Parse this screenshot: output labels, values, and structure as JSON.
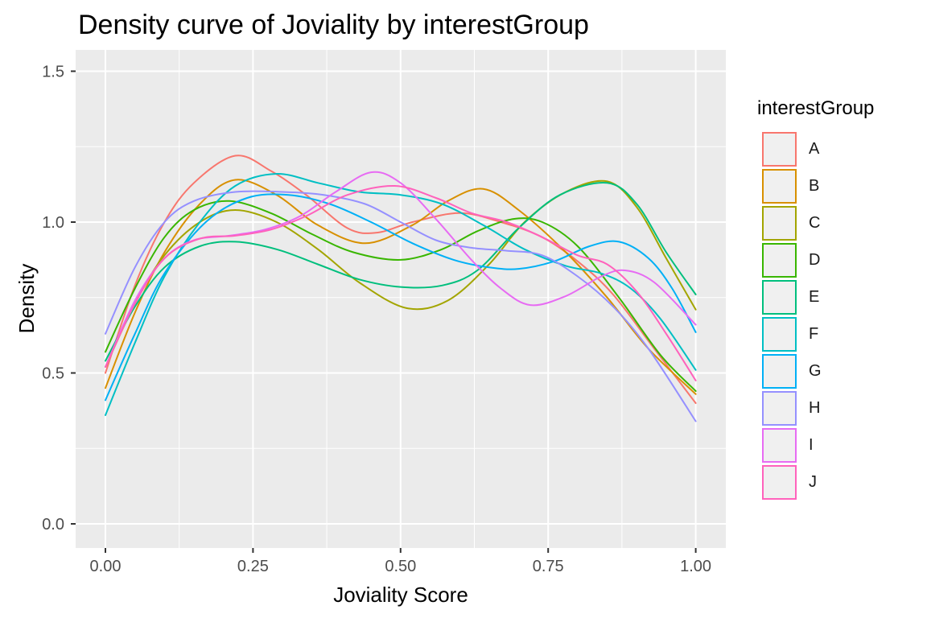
{
  "title": "Density curve of Joviality by interestGroup",
  "style": {
    "panel_bg": "#EBEBEB",
    "grid_color": "#FFFFFF",
    "tick_color": "#333333",
    "tick_label_color": "#4D4D4D",
    "title_color": "#000000",
    "axis_title_color": "#000000",
    "legend_key_bg": "#F0F0F0"
  },
  "legend": {
    "title": "interestGroup",
    "items": [
      {
        "label": "A",
        "color": "#F8766D"
      },
      {
        "label": "B",
        "color": "#D89000"
      },
      {
        "label": "C",
        "color": "#A3A500"
      },
      {
        "label": "D",
        "color": "#39B600"
      },
      {
        "label": "E",
        "color": "#00BF7D"
      },
      {
        "label": "F",
        "color": "#00BFC4"
      },
      {
        "label": "G",
        "color": "#00B0F6"
      },
      {
        "label": "H",
        "color": "#9590FF"
      },
      {
        "label": "I",
        "color": "#E76BF3"
      },
      {
        "label": "J",
        "color": "#FF62BC"
      }
    ]
  },
  "chart_data": {
    "type": "line",
    "subtype": "density",
    "title": "Density curve of Joviality by interestGroup",
    "xlabel": "Joviality Score",
    "ylabel": "Density",
    "xlim": [
      -0.05,
      1.05
    ],
    "ylim": [
      0,
      1.57
    ],
    "grid": true,
    "legend_position": "right",
    "x_ticks": [
      {
        "value": 0.0,
        "label": "0.00"
      },
      {
        "value": 0.25,
        "label": "0.25"
      },
      {
        "value": 0.5,
        "label": "0.50"
      },
      {
        "value": 0.75,
        "label": "0.75"
      },
      {
        "value": 1.0,
        "label": "1.00"
      }
    ],
    "y_ticks": [
      {
        "value": 0.0,
        "label": "0.0"
      },
      {
        "value": 0.5,
        "label": "0.5"
      },
      {
        "value": 1.0,
        "label": "1.0"
      },
      {
        "value": 1.5,
        "label": "1.5"
      }
    ],
    "x_minor": [
      0.125,
      0.375,
      0.625,
      0.875
    ],
    "y_minor": [
      0.25,
      0.75,
      1.25
    ],
    "series": [
      {
        "name": "A",
        "color": "#F8766D",
        "points": [
          [
            0,
            0.5
          ],
          [
            0.05,
            0.79
          ],
          [
            0.1,
            1.0
          ],
          [
            0.15,
            1.13
          ],
          [
            0.22,
            1.22
          ],
          [
            0.28,
            1.17
          ],
          [
            0.34,
            1.09
          ],
          [
            0.41,
            0.98
          ],
          [
            0.46,
            0.965
          ],
          [
            0.52,
            1.0
          ],
          [
            0.6,
            1.03
          ],
          [
            0.67,
            1.0
          ],
          [
            0.74,
            0.95
          ],
          [
            0.8,
            0.87
          ],
          [
            0.86,
            0.76
          ],
          [
            0.93,
            0.58
          ],
          [
            1.0,
            0.4
          ]
        ]
      },
      {
        "name": "B",
        "color": "#D89000",
        "points": [
          [
            0,
            0.45
          ],
          [
            0.05,
            0.7
          ],
          [
            0.1,
            0.9
          ],
          [
            0.16,
            1.06
          ],
          [
            0.22,
            1.14
          ],
          [
            0.29,
            1.09
          ],
          [
            0.36,
            0.99
          ],
          [
            0.44,
            0.93
          ],
          [
            0.52,
            0.99
          ],
          [
            0.58,
            1.07
          ],
          [
            0.64,
            1.11
          ],
          [
            0.7,
            1.04
          ],
          [
            0.78,
            0.9
          ],
          [
            0.85,
            0.75
          ],
          [
            0.92,
            0.58
          ],
          [
            1.0,
            0.43
          ]
        ]
      },
      {
        "name": "C",
        "color": "#A3A500",
        "points": [
          [
            0,
            0.52
          ],
          [
            0.05,
            0.73
          ],
          [
            0.1,
            0.89
          ],
          [
            0.16,
            1.0
          ],
          [
            0.22,
            1.04
          ],
          [
            0.29,
            1.0
          ],
          [
            0.36,
            0.91
          ],
          [
            0.43,
            0.8
          ],
          [
            0.51,
            0.715
          ],
          [
            0.58,
            0.74
          ],
          [
            0.65,
            0.86
          ],
          [
            0.71,
            1.0
          ],
          [
            0.78,
            1.1
          ],
          [
            0.85,
            1.135
          ],
          [
            0.9,
            1.05
          ],
          [
            0.95,
            0.88
          ],
          [
            1.0,
            0.71
          ]
        ]
      },
      {
        "name": "D",
        "color": "#39B600",
        "points": [
          [
            0,
            0.57
          ],
          [
            0.05,
            0.78
          ],
          [
            0.1,
            0.95
          ],
          [
            0.15,
            1.04
          ],
          [
            0.21,
            1.07
          ],
          [
            0.28,
            1.03
          ],
          [
            0.35,
            0.96
          ],
          [
            0.42,
            0.9
          ],
          [
            0.5,
            0.875
          ],
          [
            0.57,
            0.91
          ],
          [
            0.63,
            0.97
          ],
          [
            0.69,
            1.01
          ],
          [
            0.74,
            1.0
          ],
          [
            0.8,
            0.92
          ],
          [
            0.87,
            0.75
          ],
          [
            0.94,
            0.56
          ],
          [
            1.0,
            0.44
          ]
        ]
      },
      {
        "name": "E",
        "color": "#00BF7D",
        "points": [
          [
            0,
            0.54
          ],
          [
            0.05,
            0.72
          ],
          [
            0.1,
            0.85
          ],
          [
            0.16,
            0.92
          ],
          [
            0.22,
            0.935
          ],
          [
            0.29,
            0.91
          ],
          [
            0.36,
            0.86
          ],
          [
            0.43,
            0.81
          ],
          [
            0.5,
            0.785
          ],
          [
            0.57,
            0.79
          ],
          [
            0.63,
            0.84
          ],
          [
            0.7,
            0.98
          ],
          [
            0.77,
            1.09
          ],
          [
            0.85,
            1.13
          ],
          [
            0.9,
            1.06
          ],
          [
            0.95,
            0.9
          ],
          [
            1.0,
            0.76
          ]
        ]
      },
      {
        "name": "F",
        "color": "#00BFC4",
        "points": [
          [
            0,
            0.36
          ],
          [
            0.05,
            0.6
          ],
          [
            0.1,
            0.82
          ],
          [
            0.16,
            1.0
          ],
          [
            0.22,
            1.12
          ],
          [
            0.29,
            1.16
          ],
          [
            0.36,
            1.13
          ],
          [
            0.43,
            1.1
          ],
          [
            0.5,
            1.09
          ],
          [
            0.57,
            1.06
          ],
          [
            0.64,
            0.99
          ],
          [
            0.71,
            0.91
          ],
          [
            0.78,
            0.855
          ],
          [
            0.84,
            0.83
          ],
          [
            0.89,
            0.78
          ],
          [
            0.94,
            0.68
          ],
          [
            1.0,
            0.51
          ]
        ]
      },
      {
        "name": "G",
        "color": "#00B0F6",
        "points": [
          [
            0,
            0.41
          ],
          [
            0.05,
            0.63
          ],
          [
            0.1,
            0.83
          ],
          [
            0.17,
            1.0
          ],
          [
            0.24,
            1.08
          ],
          [
            0.31,
            1.09
          ],
          [
            0.38,
            1.06
          ],
          [
            0.45,
            1.0
          ],
          [
            0.52,
            0.93
          ],
          [
            0.59,
            0.875
          ],
          [
            0.65,
            0.85
          ],
          [
            0.7,
            0.845
          ],
          [
            0.76,
            0.87
          ],
          [
            0.82,
            0.92
          ],
          [
            0.87,
            0.935
          ],
          [
            0.92,
            0.88
          ],
          [
            0.96,
            0.78
          ],
          [
            1.0,
            0.635
          ]
        ]
      },
      {
        "name": "H",
        "color": "#9590FF",
        "points": [
          [
            0,
            0.63
          ],
          [
            0.05,
            0.85
          ],
          [
            0.1,
            1.0
          ],
          [
            0.15,
            1.07
          ],
          [
            0.22,
            1.1
          ],
          [
            0.3,
            1.1
          ],
          [
            0.37,
            1.09
          ],
          [
            0.44,
            1.06
          ],
          [
            0.5,
            1.0
          ],
          [
            0.56,
            0.94
          ],
          [
            0.62,
            0.915
          ],
          [
            0.68,
            0.905
          ],
          [
            0.74,
            0.89
          ],
          [
            0.8,
            0.82
          ],
          [
            0.86,
            0.72
          ],
          [
            0.92,
            0.58
          ],
          [
            1.0,
            0.34
          ]
        ]
      },
      {
        "name": "I",
        "color": "#E76BF3",
        "points": [
          [
            0,
            0.52
          ],
          [
            0.05,
            0.74
          ],
          [
            0.1,
            0.88
          ],
          [
            0.15,
            0.94
          ],
          [
            0.21,
            0.955
          ],
          [
            0.27,
            0.975
          ],
          [
            0.33,
            1.02
          ],
          [
            0.39,
            1.1
          ],
          [
            0.45,
            1.165
          ],
          [
            0.5,
            1.13
          ],
          [
            0.56,
            1.01
          ],
          [
            0.62,
            0.875
          ],
          [
            0.67,
            0.78
          ],
          [
            0.72,
            0.725
          ],
          [
            0.78,
            0.755
          ],
          [
            0.84,
            0.82
          ],
          [
            0.88,
            0.84
          ],
          [
            0.93,
            0.8
          ],
          [
            1.0,
            0.66
          ]
        ]
      },
      {
        "name": "J",
        "color": "#FF62BC",
        "points": [
          [
            0,
            0.52
          ],
          [
            0.05,
            0.73
          ],
          [
            0.1,
            0.88
          ],
          [
            0.16,
            0.945
          ],
          [
            0.22,
            0.955
          ],
          [
            0.28,
            0.975
          ],
          [
            0.34,
            1.02
          ],
          [
            0.41,
            1.09
          ],
          [
            0.49,
            1.12
          ],
          [
            0.56,
            1.08
          ],
          [
            0.62,
            1.03
          ],
          [
            0.68,
            1.0
          ],
          [
            0.74,
            0.95
          ],
          [
            0.8,
            0.89
          ],
          [
            0.85,
            0.86
          ],
          [
            0.9,
            0.77
          ],
          [
            0.95,
            0.63
          ],
          [
            1.0,
            0.475
          ]
        ]
      }
    ]
  }
}
